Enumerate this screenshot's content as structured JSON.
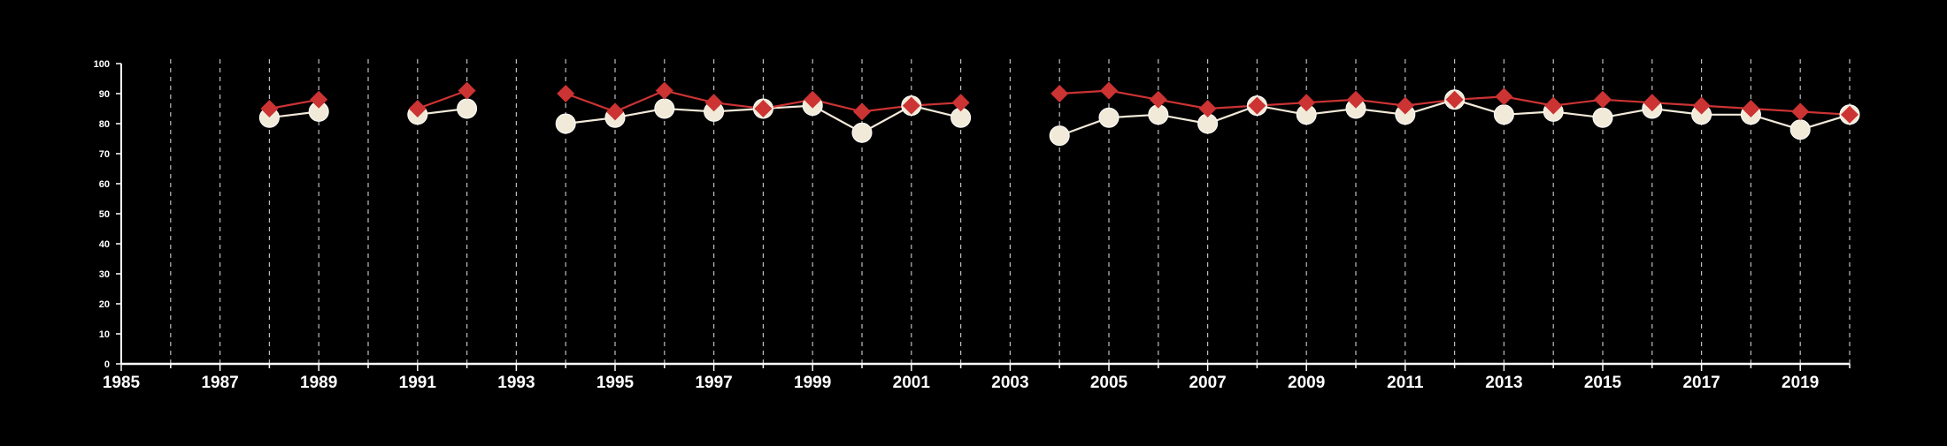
{
  "chart_data": {
    "type": "line",
    "title": "",
    "xlabel": "",
    "ylabel": "",
    "xlim": [
      1985,
      2020
    ],
    "ylim": [
      0,
      100
    ],
    "y_ticks": [
      0,
      10,
      20,
      30,
      40,
      50,
      60,
      70,
      80,
      90,
      100
    ],
    "x_ticks": [
      1985,
      1987,
      1989,
      1991,
      1993,
      1995,
      1997,
      1999,
      2001,
      2003,
      2005,
      2007,
      2009,
      2011,
      2013,
      2015,
      2017,
      2019
    ],
    "x_tick_labels": [
      "1985",
      "1987",
      "1989",
      "1991",
      "1993",
      "1995",
      "1997",
      "1999",
      "2001",
      "2003",
      "2005",
      "2007",
      "2009",
      "2011",
      "2013",
      "2015",
      "2017",
      "2019"
    ],
    "vertical_gridlines": "dashed, every year",
    "background": "#000000",
    "x": [
      1985,
      1986,
      1987,
      1988,
      1989,
      1990,
      1991,
      1992,
      1993,
      1994,
      1995,
      1996,
      1997,
      1998,
      1999,
      2000,
      2001,
      2002,
      2003,
      2004,
      2005,
      2006,
      2007,
      2008,
      2009,
      2010,
      2011,
      2012,
      2013,
      2014,
      2015,
      2016,
      2017,
      2018,
      2019,
      2020
    ],
    "series": [
      {
        "marker": "circle",
        "color": "#f2ead8",
        "values": [
          null,
          null,
          null,
          82,
          84,
          null,
          83,
          85,
          null,
          80,
          82,
          85,
          84,
          85,
          86,
          77,
          86,
          82,
          null,
          76,
          82,
          83,
          80,
          86,
          83,
          85,
          83,
          88,
          83,
          84,
          82,
          85,
          83,
          83,
          78,
          83
        ]
      },
      {
        "marker": "diamond",
        "color": "#cc3333",
        "values": [
          null,
          null,
          null,
          85,
          88,
          null,
          85,
          91,
          null,
          90,
          84,
          91,
          87,
          85,
          88,
          84,
          86,
          87,
          null,
          90,
          91,
          88,
          85,
          86,
          87,
          88,
          86,
          88,
          89,
          86,
          88,
          87,
          86,
          85,
          84,
          83
        ]
      }
    ]
  }
}
